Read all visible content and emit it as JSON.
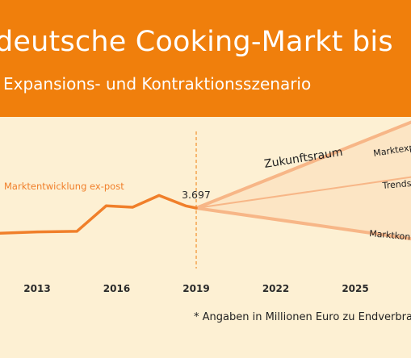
{
  "header": {
    "title": "deutsche Cooking-Markt bis",
    "subtitle": "Expansions- und Kontraktionsszenario"
  },
  "footnote": "* Angaben in Millionen Euro zu Endverbra",
  "colors": {
    "header_bg": "#f07f0c",
    "chart_bg": "#fdf0d3",
    "line": "#f07f2a",
    "scenario_fill": "#fce5c4",
    "scenario_line": "#f7b687",
    "divider": "#f07f0c"
  },
  "chart_data": {
    "type": "line",
    "xlim": [
      2011.6,
      2027.1
    ],
    "ylim": [
      3300,
      4000
    ],
    "x_ticks": [
      {
        "value": 2013,
        "label": "2013"
      },
      {
        "value": 2016,
        "label": "2016"
      },
      {
        "value": 2019,
        "label": "2019"
      },
      {
        "value": 2022,
        "label": "2022"
      },
      {
        "value": 2025,
        "label": "2025"
      }
    ],
    "series": [
      {
        "name": "Marktentwicklung ex-post",
        "x": [
          2011.6,
          2013,
          2014.5,
          2015.6,
          2016.6,
          2017.6,
          2018.6,
          2019
        ],
        "y": [
          3605,
          3610,
          3612,
          3705,
          3700,
          3743,
          3705,
          3697
        ]
      },
      {
        "name": "Marktexp",
        "x": [
          2019,
          2027.1
        ],
        "y": [
          3697,
          4010
        ]
      },
      {
        "name": "Trends",
        "x": [
          2019,
          2027.1
        ],
        "y": [
          3697,
          3810
        ]
      },
      {
        "name": "Marktkon",
        "x": [
          2019,
          2027.1
        ],
        "y": [
          3697,
          3585
        ]
      }
    ],
    "annotations": {
      "zukunftsraum": "Zukunftsraum",
      "value_2019": "3.697",
      "divider_year": 2019
    }
  }
}
